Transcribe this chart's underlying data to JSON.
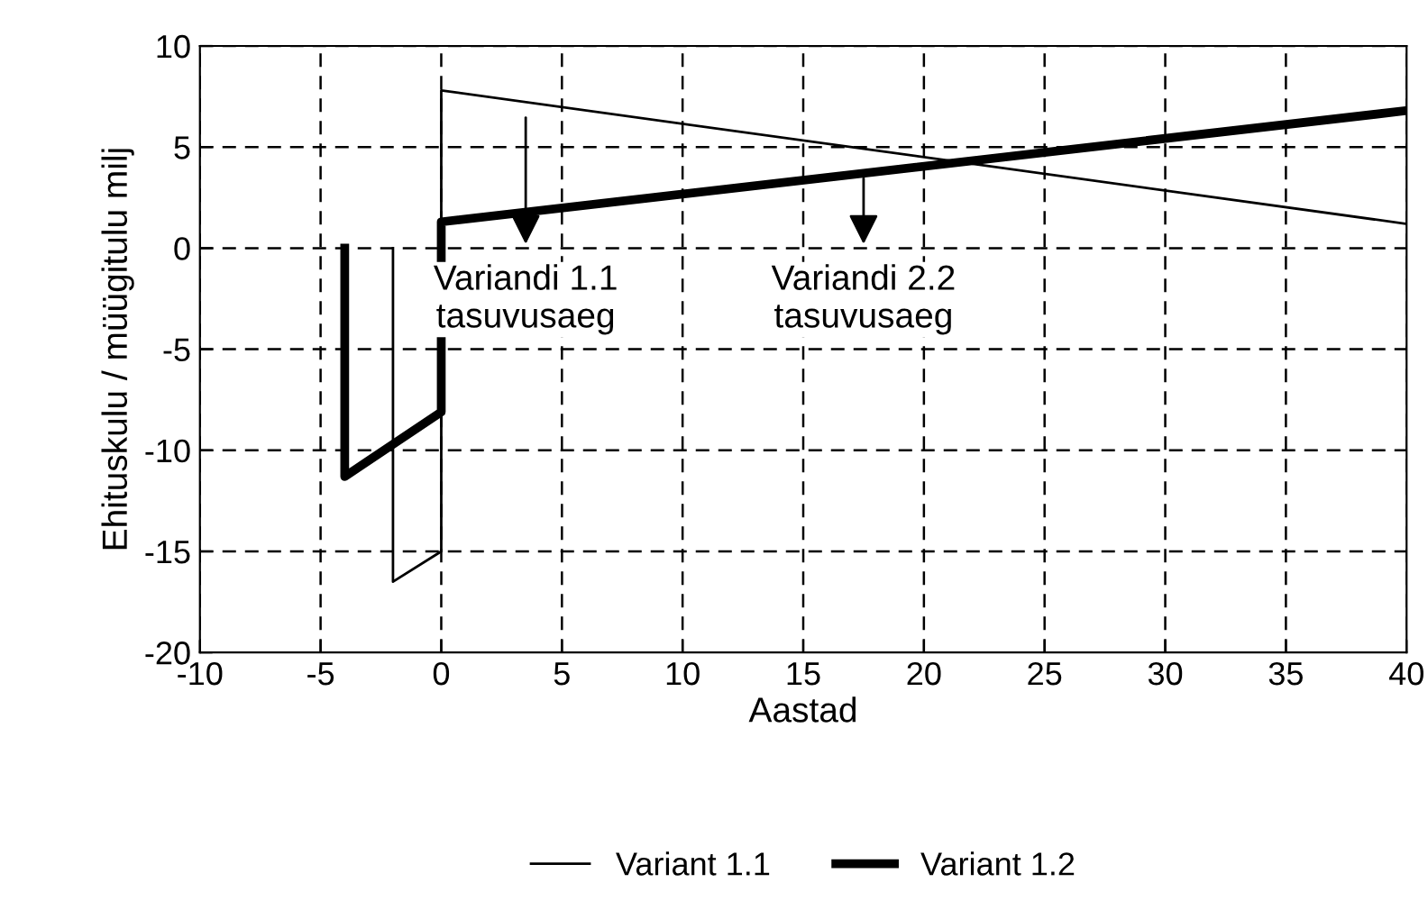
{
  "chart_data": {
    "type": "line",
    "xlabel": "Aastad",
    "ylabel": "Ehituskulu / müügitulu milj",
    "series": [
      {
        "name": "Variant 1.1",
        "color": "#000000",
        "x": [
          -2,
          -2,
          0,
          0,
          40
        ],
        "values": [
          0,
          -16.5,
          -15,
          7.8,
          1.2
        ]
      },
      {
        "name": "Variant 1.2",
        "color": "#000000",
        "x": [
          -4,
          -4,
          0,
          0,
          40
        ],
        "values": [
          0,
          -11.3,
          -8.1,
          1.3,
          6.8
        ]
      }
    ],
    "xlim": [
      -10,
      40
    ],
    "xticks": [
      -10,
      -5,
      0,
      5,
      10,
      15,
      20,
      25,
      30,
      35,
      40
    ],
    "ylim": [
      -20,
      10
    ],
    "yticks": [
      -20,
      -15,
      -10,
      -5,
      0,
      5,
      10
    ],
    "annotations": [
      "Variandi 1.1\ntasuvusaeg",
      "Variandi 2.2\ntasuvusaeg"
    ],
    "grid": true,
    "legend": "bottom",
    "marker": "none",
    "line_style": "solid"
  }
}
